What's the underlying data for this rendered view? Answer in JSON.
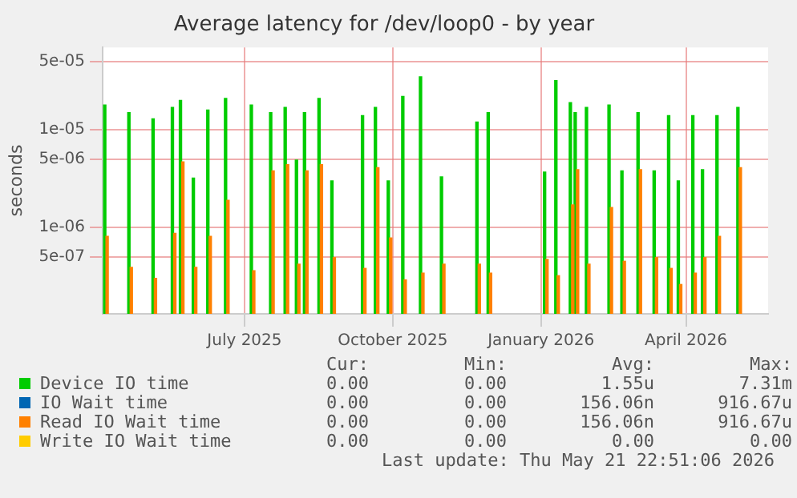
{
  "chart_data": {
    "type": "bar",
    "title": "Average latency for /dev/loop0 - by year",
    "ylabel": "seconds",
    "x": [
      "2025-04-06",
      "2025-04-21",
      "2025-05-06",
      "2025-05-18",
      "2025-05-23",
      "2025-05-31",
      "2025-06-09",
      "2025-06-20",
      "2025-07-06",
      "2025-07-18",
      "2025-07-27",
      "2025-08-03",
      "2025-08-08",
      "2025-08-17",
      "2025-08-25",
      "2025-09-13",
      "2025-09-21",
      "2025-09-29",
      "2025-10-08",
      "2025-10-19",
      "2025-11-01",
      "2025-11-23",
      "2025-11-30",
      "2026-01-04",
      "2026-01-11",
      "2026-01-20",
      "2026-01-23",
      "2026-01-30",
      "2026-02-13",
      "2026-02-21",
      "2026-03-03",
      "2026-03-13",
      "2026-03-22",
      "2026-03-28",
      "2026-04-06",
      "2026-04-12",
      "2026-04-21",
      "2026-05-04"
    ],
    "series": [
      {
        "name": "Device IO time",
        "color": "#00cc00",
        "values": [
          1.8e-05,
          1.5e-05,
          1.3e-05,
          1.7e-05,
          2e-05,
          3.2e-06,
          1.6e-05,
          2.1e-05,
          1.8e-05,
          1.5e-05,
          1.7e-05,
          4.9e-06,
          1.5e-05,
          2.1e-05,
          3e-06,
          1.4e-05,
          1.7e-05,
          3e-06,
          2.2e-05,
          3.5e-05,
          3.3e-06,
          1.2e-05,
          1.5e-05,
          3.7e-06,
          3.2e-05,
          1.9e-05,
          1.5e-05,
          1.7e-05,
          1.8e-05,
          3.8e-06,
          1.5e-05,
          3.8e-06,
          1.4e-05,
          3e-06,
          1.4e-05,
          3.9e-06,
          1.4e-05,
          1.7e-05
        ]
      },
      {
        "name": "IO Wait time",
        "color": "#0066b3",
        "values": [
          null,
          null,
          null,
          null,
          null,
          null,
          null,
          null,
          null,
          null,
          null,
          null,
          null,
          null,
          null,
          null,
          null,
          null,
          null,
          null,
          null,
          null,
          null,
          null,
          null,
          null,
          null,
          null,
          null,
          null,
          null,
          null,
          null,
          null,
          null,
          null,
          null,
          null
        ]
      },
      {
        "name": "Read IO Wait time",
        "color": "#ff8000",
        "values": [
          8.1e-07,
          3.9e-07,
          3e-07,
          8.7e-07,
          4.7e-06,
          3.9e-07,
          8.1e-07,
          1.9e-06,
          3.6e-07,
          3.8e-06,
          4.4e-06,
          4.2e-07,
          3.8e-06,
          4.4e-06,
          4.9e-07,
          3.8e-07,
          4.1e-06,
          7.8e-07,
          2.9e-07,
          3.4e-07,
          4.2e-07,
          4.2e-07,
          3.4e-07,
          4.7e-07,
          3.2e-07,
          1.7e-06,
          3.9e-06,
          4.2e-07,
          1.6e-06,
          4.5e-07,
          3.9e-06,
          4.9e-07,
          3.8e-07,
          2.6e-07,
          3.4e-07,
          4.9e-07,
          8.1e-07,
          4.1e-06
        ]
      },
      {
        "name": "Write IO Wait time",
        "color": "#ffcc00",
        "values": [
          null,
          null,
          null,
          null,
          null,
          null,
          null,
          null,
          null,
          null,
          null,
          null,
          null,
          null,
          null,
          null,
          null,
          null,
          null,
          null,
          null,
          null,
          null,
          null,
          null,
          null,
          null,
          null,
          null,
          null,
          null,
          null,
          null,
          null,
          null,
          null,
          null,
          null
        ]
      }
    ],
    "xlim": [
      "2025-04-04",
      "2026-05-22"
    ],
    "xticks": [
      {
        "value": "2025-07-01",
        "label": "July 2025"
      },
      {
        "value": "2025-10-01",
        "label": "October 2025"
      },
      {
        "value": "2026-01-01",
        "label": "January 2026"
      },
      {
        "value": "2026-04-01",
        "label": "April 2026"
      }
    ],
    "ylim": [
      1.3e-07,
      7e-05
    ],
    "yticks": [
      {
        "value": 5e-07,
        "label": "5e-07"
      },
      {
        "value": 1e-06,
        "label": "1e-06"
      },
      {
        "value": 5e-06,
        "label": "5e-06"
      },
      {
        "value": 1e-05,
        "label": "1e-05"
      },
      {
        "value": 5e-05,
        "label": "5e-05"
      }
    ],
    "log": "y",
    "grid": true,
    "legend": "bottom",
    "annotations": [
      "Cur:",
      "Min:",
      "Avg:",
      "Max:",
      "0.00",
      "0.00",
      "1.55u",
      "7.31m",
      "0.00",
      "0.00",
      "156.06n",
      "916.67u",
      "0.00",
      "0.00",
      "156.06n",
      "916.67u",
      "0.00",
      "0.00",
      "0.00",
      "0.00",
      "Last update: Thu May 21 22:51:06 2026"
    ]
  }
}
